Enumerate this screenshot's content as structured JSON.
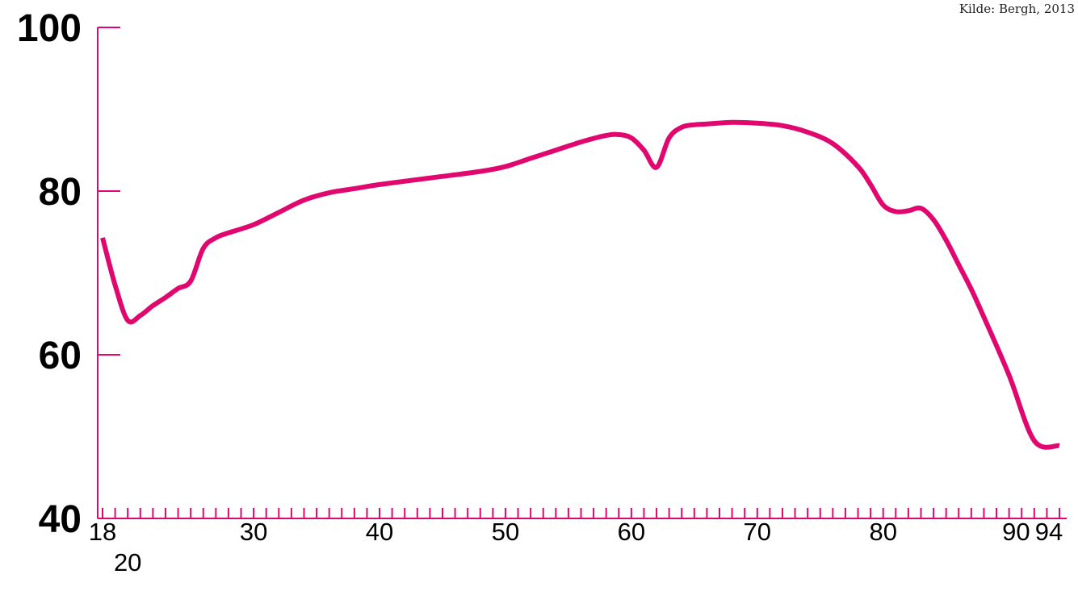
{
  "source": "Kilde: Bergh, 2013",
  "colors": {
    "line": "#e0076f",
    "axis": "#e0076f",
    "text": "#000000"
  },
  "chart_data": {
    "type": "line",
    "title": "",
    "xlabel": "",
    "ylabel": "",
    "xlim": [
      18,
      94
    ],
    "ylim": [
      40,
      100
    ],
    "yticks": [
      100,
      80,
      60,
      40
    ],
    "xticks": [
      {
        "label": "18",
        "value": 18,
        "row": 1
      },
      {
        "label": "20",
        "value": 20,
        "row": 2
      },
      {
        "label": "30",
        "value": 30,
        "row": 1
      },
      {
        "label": "40",
        "value": 40,
        "row": 1
      },
      {
        "label": "50",
        "value": 50,
        "row": 1
      },
      {
        "label": "60",
        "value": 60,
        "row": 1
      },
      {
        "label": "70",
        "value": 70,
        "row": 1
      },
      {
        "label": "80",
        "value": 80,
        "row": 1
      },
      {
        "label": "90",
        "value": 90,
        "row": 1
      },
      {
        "label": "94",
        "value": 94,
        "row": 1
      }
    ],
    "minor_tick_step": 1,
    "grid": false,
    "series": [
      {
        "x": [
          18,
          19,
          20,
          21,
          22,
          23,
          24,
          25,
          26,
          27,
          28,
          30,
          32,
          34,
          36,
          38,
          40,
          44,
          48,
          50,
          52,
          54,
          56,
          58,
          59,
          60,
          61,
          62,
          63,
          64,
          65,
          66,
          68,
          70,
          72,
          74,
          76,
          78,
          79,
          80,
          81,
          82,
          83,
          84,
          85,
          86,
          87,
          88,
          90,
          92,
          94
        ],
        "y": [
          74.3,
          68.5,
          64.2,
          64.8,
          66.0,
          67.0,
          68.1,
          69.0,
          73.0,
          74.3,
          74.9,
          75.9,
          77.4,
          78.9,
          79.8,
          80.3,
          80.8,
          81.6,
          82.4,
          83.0,
          84.0,
          85.0,
          86.0,
          86.8,
          86.9,
          86.5,
          85.0,
          82.9,
          86.5,
          87.8,
          88.1,
          88.2,
          88.4,
          88.3,
          88.0,
          87.2,
          85.8,
          83.0,
          80.8,
          78.3,
          77.5,
          77.6,
          77.9,
          76.5,
          74.0,
          71.0,
          68.0,
          64.6,
          57.5,
          49.5,
          48.9
        ]
      }
    ]
  }
}
